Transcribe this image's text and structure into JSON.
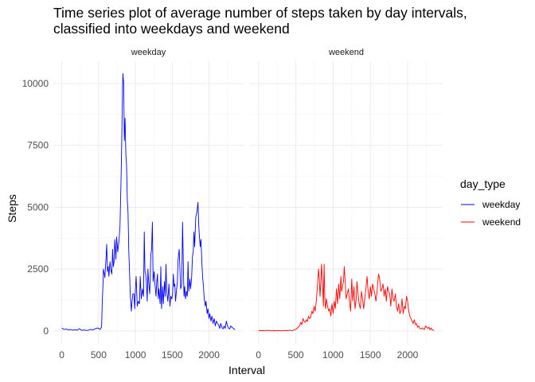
{
  "chart_data": {
    "type": "line",
    "title": "Time series plot of average number of steps taken by day intervals,\nclassified into weekdays and weekend",
    "xlabel": "Interval",
    "ylabel": "Steps",
    "xlim": [
      0,
      2355
    ],
    "ylim": [
      0,
      10500
    ],
    "x_ticks": [
      0,
      500,
      1000,
      1500,
      2000
    ],
    "y_ticks": [
      0,
      2500,
      5000,
      7500,
      10000
    ],
    "grid": true,
    "legend": {
      "title": "day_type",
      "placement": "right"
    },
    "facets": [
      "weekday",
      "weekend"
    ],
    "series": [
      {
        "name": "weekday",
        "facet": "weekday",
        "color": "#0000FF",
        "points": [
          [
            0,
            120
          ],
          [
            30,
            60
          ],
          [
            60,
            80
          ],
          [
            90,
            40
          ],
          [
            120,
            60
          ],
          [
            150,
            30
          ],
          [
            180,
            50
          ],
          [
            210,
            30
          ],
          [
            240,
            90
          ],
          [
            270,
            20
          ],
          [
            300,
            40
          ],
          [
            330,
            20
          ],
          [
            360,
            30
          ],
          [
            390,
            60
          ],
          [
            420,
            40
          ],
          [
            450,
            80
          ],
          [
            480,
            120
          ],
          [
            500,
            100
          ],
          [
            520,
            60
          ],
          [
            540,
            160
          ],
          [
            550,
            1200
          ],
          [
            560,
            1900
          ],
          [
            565,
            2500
          ],
          [
            575,
            2350
          ],
          [
            585,
            2150
          ],
          [
            600,
            2900
          ],
          [
            610,
            3500
          ],
          [
            620,
            2400
          ],
          [
            630,
            2600
          ],
          [
            640,
            2200
          ],
          [
            655,
            2800
          ],
          [
            665,
            2500
          ],
          [
            680,
            2300
          ],
          [
            690,
            3300
          ],
          [
            700,
            2600
          ],
          [
            710,
            2800
          ],
          [
            720,
            3700
          ],
          [
            735,
            2900
          ],
          [
            745,
            3800
          ],
          [
            760,
            3200
          ],
          [
            775,
            3600
          ],
          [
            790,
            4200
          ],
          [
            805,
            6200
          ],
          [
            815,
            7800
          ],
          [
            825,
            9800
          ],
          [
            830,
            10400
          ],
          [
            840,
            10000
          ],
          [
            850,
            7700
          ],
          [
            860,
            8600
          ],
          [
            870,
            7100
          ],
          [
            880,
            6700
          ],
          [
            890,
            5300
          ],
          [
            900,
            4800
          ],
          [
            910,
            3200
          ],
          [
            920,
            2400
          ],
          [
            930,
            1500
          ],
          [
            945,
            800
          ],
          [
            955,
            1200
          ],
          [
            965,
            1500
          ],
          [
            980,
            1500
          ],
          [
            990,
            900
          ],
          [
            1000,
            1700
          ],
          [
            1010,
            2200
          ],
          [
            1025,
            1000
          ],
          [
            1040,
            1200
          ],
          [
            1055,
            1100
          ],
          [
            1065,
            2200
          ],
          [
            1080,
            1300
          ],
          [
            1095,
            1700
          ],
          [
            1110,
            1400
          ],
          [
            1120,
            4000
          ],
          [
            1130,
            2400
          ],
          [
            1140,
            2300
          ],
          [
            1150,
            1900
          ],
          [
            1160,
            1200
          ],
          [
            1170,
            2500
          ],
          [
            1180,
            2000
          ],
          [
            1195,
            1500
          ],
          [
            1210,
            3100
          ],
          [
            1220,
            3300
          ],
          [
            1230,
            4400
          ],
          [
            1240,
            2000
          ],
          [
            1255,
            2400
          ],
          [
            1265,
            1900
          ],
          [
            1280,
            1400
          ],
          [
            1290,
            2000
          ],
          [
            1300,
            2300
          ],
          [
            1310,
            1300
          ],
          [
            1320,
            1700
          ],
          [
            1335,
            1100
          ],
          [
            1345,
            2600
          ],
          [
            1355,
            900
          ],
          [
            1370,
            1800
          ],
          [
            1380,
            1100
          ],
          [
            1395,
            2000
          ],
          [
            1405,
            1400
          ],
          [
            1415,
            2700
          ],
          [
            1425,
            1600
          ],
          [
            1440,
            1200
          ],
          [
            1455,
            1900
          ],
          [
            1470,
            1000
          ],
          [
            1480,
            1400
          ],
          [
            1495,
            1300
          ],
          [
            1505,
            1500
          ],
          [
            1515,
            2300
          ],
          [
            1525,
            1800
          ],
          [
            1535,
            1900
          ],
          [
            1545,
            1200
          ],
          [
            1560,
            1700
          ],
          [
            1570,
            2000
          ],
          [
            1580,
            2900
          ],
          [
            1595,
            3300
          ],
          [
            1605,
            2500
          ],
          [
            1615,
            1700
          ],
          [
            1630,
            1900
          ],
          [
            1640,
            4400
          ],
          [
            1650,
            2900
          ],
          [
            1660,
            1400
          ],
          [
            1670,
            1800
          ],
          [
            1680,
            1300
          ],
          [
            1695,
            1600
          ],
          [
            1705,
            1400
          ],
          [
            1715,
            2800
          ],
          [
            1725,
            1600
          ],
          [
            1740,
            2100
          ],
          [
            1750,
            1700
          ],
          [
            1765,
            2200
          ],
          [
            1775,
            3000
          ],
          [
            1785,
            3200
          ],
          [
            1795,
            4000
          ],
          [
            1805,
            3400
          ],
          [
            1820,
            4600
          ],
          [
            1835,
            4800
          ],
          [
            1850,
            5200
          ],
          [
            1860,
            4300
          ],
          [
            1870,
            3800
          ],
          [
            1880,
            3400
          ],
          [
            1890,
            3700
          ],
          [
            1905,
            2600
          ],
          [
            1915,
            2100
          ],
          [
            1925,
            1800
          ],
          [
            1935,
            1300
          ],
          [
            1950,
            1000
          ],
          [
            1960,
            1200
          ],
          [
            1975,
            700
          ],
          [
            1985,
            900
          ],
          [
            2000,
            500
          ],
          [
            2010,
            700
          ],
          [
            2025,
            400
          ],
          [
            2040,
            600
          ],
          [
            2055,
            300
          ],
          [
            2070,
            500
          ],
          [
            2085,
            200
          ],
          [
            2100,
            400
          ],
          [
            2115,
            300
          ],
          [
            2130,
            250
          ],
          [
            2145,
            100
          ],
          [
            2160,
            300
          ],
          [
            2175,
            150
          ],
          [
            2190,
            80
          ],
          [
            2205,
            200
          ],
          [
            2220,
            100
          ],
          [
            2235,
            400
          ],
          [
            2250,
            200
          ],
          [
            2265,
            120
          ],
          [
            2280,
            80
          ],
          [
            2295,
            200
          ],
          [
            2310,
            150
          ],
          [
            2325,
            120
          ],
          [
            2340,
            70
          ],
          [
            2355,
            60
          ]
        ]
      },
      {
        "name": "weekend",
        "facet": "weekend",
        "color": "#FF0000",
        "points": [
          [
            0,
            20
          ],
          [
            30,
            10
          ],
          [
            60,
            15
          ],
          [
            90,
            5
          ],
          [
            120,
            25
          ],
          [
            150,
            10
          ],
          [
            180,
            5
          ],
          [
            210,
            10
          ],
          [
            240,
            5
          ],
          [
            270,
            15
          ],
          [
            300,
            5
          ],
          [
            330,
            10
          ],
          [
            360,
            20
          ],
          [
            390,
            10
          ],
          [
            420,
            30
          ],
          [
            450,
            15
          ],
          [
            480,
            40
          ],
          [
            510,
            80
          ],
          [
            530,
            150
          ],
          [
            550,
            200
          ],
          [
            565,
            350
          ],
          [
            580,
            250
          ],
          [
            595,
            500
          ],
          [
            610,
            400
          ],
          [
            625,
            350
          ],
          [
            640,
            450
          ],
          [
            655,
            380
          ],
          [
            670,
            600
          ],
          [
            685,
            500
          ],
          [
            700,
            550
          ],
          [
            715,
            800
          ],
          [
            730,
            700
          ],
          [
            745,
            1000
          ],
          [
            760,
            800
          ],
          [
            775,
            1200
          ],
          [
            790,
            1800
          ],
          [
            805,
            2500
          ],
          [
            815,
            2100
          ],
          [
            825,
            1400
          ],
          [
            835,
            1900
          ],
          [
            845,
            2700
          ],
          [
            860,
            1800
          ],
          [
            870,
            1000
          ],
          [
            880,
            2700
          ],
          [
            890,
            1200
          ],
          [
            900,
            900
          ],
          [
            910,
            1300
          ],
          [
            925,
            1000
          ],
          [
            940,
            800
          ],
          [
            955,
            900
          ],
          [
            970,
            600
          ],
          [
            985,
            1100
          ],
          [
            1000,
            700
          ],
          [
            1015,
            1200
          ],
          [
            1030,
            900
          ],
          [
            1045,
            1700
          ],
          [
            1060,
            1100
          ],
          [
            1075,
            1900
          ],
          [
            1090,
            1300
          ],
          [
            1105,
            2200
          ],
          [
            1115,
            1600
          ],
          [
            1125,
            1800
          ],
          [
            1140,
            2000
          ],
          [
            1150,
            2600
          ],
          [
            1160,
            2100
          ],
          [
            1175,
            1300
          ],
          [
            1190,
            1500
          ],
          [
            1205,
            1700
          ],
          [
            1220,
            1200
          ],
          [
            1235,
            800
          ],
          [
            1250,
            2100
          ],
          [
            1265,
            1200
          ],
          [
            1280,
            1800
          ],
          [
            1295,
            900
          ],
          [
            1310,
            1300
          ],
          [
            1320,
            2000
          ],
          [
            1335,
            1500
          ],
          [
            1350,
            1100
          ],
          [
            1365,
            900
          ],
          [
            1380,
            1600
          ],
          [
            1395,
            1300
          ],
          [
            1410,
            900
          ],
          [
            1425,
            1300
          ],
          [
            1440,
            1700
          ],
          [
            1455,
            2200
          ],
          [
            1470,
            1600
          ],
          [
            1485,
            1300
          ],
          [
            1500,
            1800
          ],
          [
            1515,
            1400
          ],
          [
            1530,
            1900
          ],
          [
            1545,
            1700
          ],
          [
            1560,
            1500
          ],
          [
            1575,
            1200
          ],
          [
            1590,
            1600
          ],
          [
            1600,
            2000
          ],
          [
            1610,
            2300
          ],
          [
            1625,
            2100
          ],
          [
            1640,
            1600
          ],
          [
            1655,
            1700
          ],
          [
            1670,
            1900
          ],
          [
            1685,
            1400
          ],
          [
            1700,
            1700
          ],
          [
            1715,
            1200
          ],
          [
            1730,
            1800
          ],
          [
            1745,
            1600
          ],
          [
            1760,
            1500
          ],
          [
            1775,
            1000
          ],
          [
            1790,
            1700
          ],
          [
            1805,
            1300
          ],
          [
            1820,
            1200
          ],
          [
            1835,
            1500
          ],
          [
            1850,
            1000
          ],
          [
            1865,
            800
          ],
          [
            1880,
            1100
          ],
          [
            1895,
            700
          ],
          [
            1910,
            800
          ],
          [
            1925,
            1300
          ],
          [
            1940,
            700
          ],
          [
            1955,
            1000
          ],
          [
            1970,
            900
          ],
          [
            1985,
            1400
          ],
          [
            2000,
            1200
          ],
          [
            2015,
            800
          ],
          [
            2030,
            600
          ],
          [
            2045,
            500
          ],
          [
            2060,
            400
          ],
          [
            2075,
            300
          ],
          [
            2090,
            450
          ],
          [
            2105,
            250
          ],
          [
            2120,
            300
          ],
          [
            2135,
            150
          ],
          [
            2150,
            200
          ],
          [
            2165,
            100
          ],
          [
            2180,
            80
          ],
          [
            2195,
            120
          ],
          [
            2210,
            80
          ],
          [
            2225,
            60
          ],
          [
            2240,
            200
          ],
          [
            2255,
            150
          ],
          [
            2270,
            100
          ],
          [
            2285,
            150
          ],
          [
            2300,
            50
          ],
          [
            2315,
            120
          ],
          [
            2330,
            40
          ],
          [
            2355,
            20
          ]
        ]
      }
    ]
  }
}
